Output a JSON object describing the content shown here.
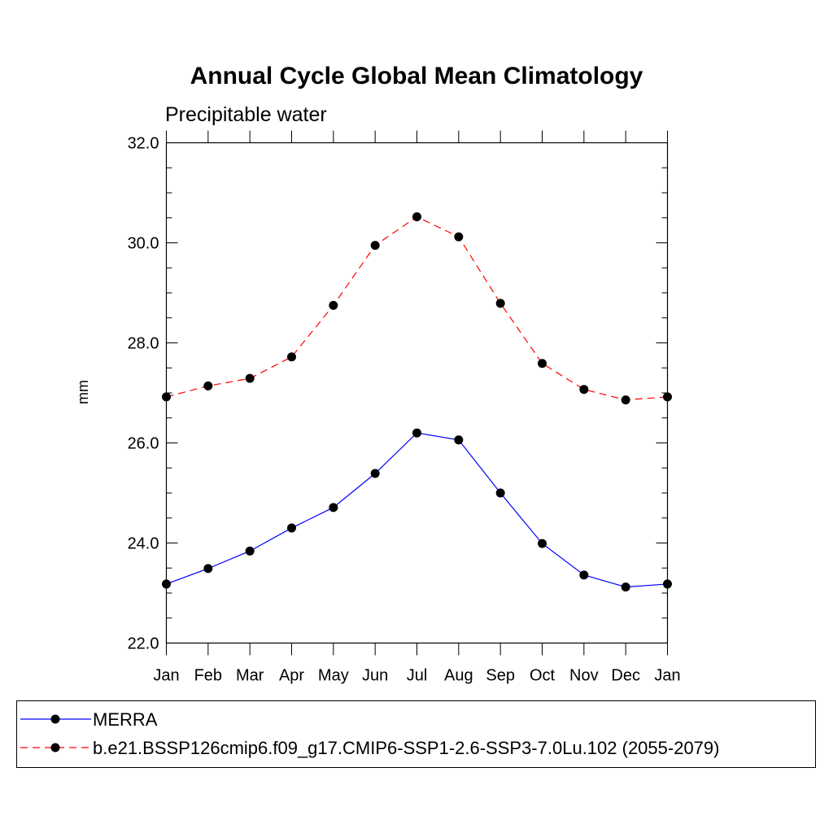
{
  "chart_data": {
    "type": "line",
    "title": "Annual Cycle Global Mean Climatology",
    "subtitle": "Precipitable water",
    "xlabel": "",
    "ylabel": "mm",
    "categories": [
      "Jan",
      "Feb",
      "Mar",
      "Apr",
      "May",
      "Jun",
      "Jul",
      "Aug",
      "Sep",
      "Oct",
      "Nov",
      "Dec",
      "Jan"
    ],
    "ylim": [
      22.0,
      32.0
    ],
    "yticks": [
      22.0,
      24.0,
      26.0,
      28.0,
      30.0,
      32.0
    ],
    "ytick_labels": [
      "22.0",
      "24.0",
      "26.0",
      "28.0",
      "30.0",
      "32.0"
    ],
    "grid": false,
    "legend_position": "bottom",
    "series": [
      {
        "name": "MERRA",
        "color": "#0000ff",
        "line_style": "solid",
        "marker": "filled-circle",
        "values": [
          23.18,
          23.49,
          23.84,
          24.3,
          24.71,
          25.39,
          26.2,
          26.06,
          25.0,
          23.99,
          23.36,
          23.12,
          23.18
        ]
      },
      {
        "name": "b.e21.BSSP126cmip6.f09_g17.CMIP6-SSP1-2.6-SSP3-7.0Lu.102 (2055-2079)",
        "color": "#ff0000",
        "line_style": "dashed",
        "marker": "filled-circle",
        "values": [
          26.92,
          27.14,
          27.29,
          27.72,
          28.75,
          29.95,
          30.52,
          30.12,
          28.79,
          27.59,
          27.07,
          26.86,
          26.92
        ]
      }
    ]
  }
}
